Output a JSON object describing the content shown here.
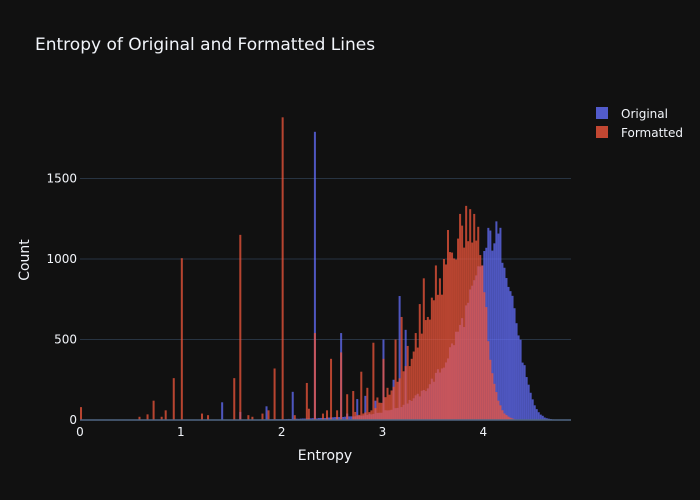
{
  "chart_data": {
    "type": "bar",
    "subtype": "overlaid-histogram",
    "title": "Entropy of Original and Formatted Lines",
    "xlabel": "Entropy",
    "ylabel": "Count",
    "xlim": [
      0,
      4.87
    ],
    "ylim": [
      0,
      2000
    ],
    "x_ticks": [
      0,
      1,
      2,
      3,
      4
    ],
    "y_ticks": [
      0,
      500,
      1000,
      1500
    ],
    "grid": true,
    "legend_position": "top-right",
    "bin_width": 0.02,
    "series": [
      {
        "name": "Original",
        "color": "#636efa",
        "smooth": {
          "points": [
            [
              1.6,
              2
            ],
            [
              2.0,
              5
            ],
            [
              2.4,
              12
            ],
            [
              2.8,
              28
            ],
            [
              3.0,
              50
            ],
            [
              3.2,
              90
            ],
            [
              3.4,
              170
            ],
            [
              3.6,
              330
            ],
            [
              3.8,
              620
            ],
            [
              3.9,
              800
            ],
            [
              4.0,
              1000
            ],
            [
              4.04,
              1090
            ],
            [
              4.08,
              1140
            ],
            [
              4.12,
              1150
            ],
            [
              4.16,
              1120
            ],
            [
              4.2,
              1050
            ],
            [
              4.26,
              880
            ],
            [
              4.32,
              650
            ],
            [
              4.38,
              420
            ],
            [
              4.44,
              220
            ],
            [
              4.5,
              100
            ],
            [
              4.56,
              38
            ],
            [
              4.62,
              12
            ],
            [
              4.7,
              2
            ]
          ]
        },
        "spikes": [
          [
            1.4,
            110
          ],
          [
            1.58,
            50
          ],
          [
            1.84,
            85
          ],
          [
            2.1,
            175
          ],
          [
            2.32,
            1790
          ],
          [
            2.58,
            540
          ],
          [
            2.64,
            40
          ],
          [
            2.74,
            130
          ],
          [
            2.81,
            150
          ],
          [
            2.92,
            120
          ],
          [
            3.0,
            500
          ],
          [
            3.1,
            250
          ],
          [
            3.16,
            770
          ],
          [
            3.22,
            560
          ]
        ]
      },
      {
        "name": "Formatted",
        "color": "#ef553b",
        "smooth": {
          "points": [
            [
              2.7,
              20
            ],
            [
              2.9,
              60
            ],
            [
              3.1,
              180
            ],
            [
              3.3,
              380
            ],
            [
              3.5,
              680
            ],
            [
              3.6,
              850
            ],
            [
              3.7,
              1010
            ],
            [
              3.76,
              1110
            ],
            [
              3.8,
              1180
            ],
            [
              3.84,
              1210
            ],
            [
              3.88,
              1240
            ],
            [
              3.9,
              1200
            ],
            [
              3.94,
              1100
            ],
            [
              3.98,
              920
            ],
            [
              4.02,
              700
            ],
            [
              4.06,
              460
            ],
            [
              4.1,
              260
            ],
            [
              4.14,
              130
            ],
            [
              4.2,
              50
            ],
            [
              4.26,
              15
            ],
            [
              4.32,
              3
            ]
          ]
        },
        "spikes": [
          [
            0.0,
            80
          ],
          [
            0.58,
            20
          ],
          [
            0.66,
            35
          ],
          [
            0.72,
            120
          ],
          [
            0.8,
            20
          ],
          [
            0.84,
            60
          ],
          [
            0.92,
            260
          ],
          [
            1.0,
            1005
          ],
          [
            1.2,
            40
          ],
          [
            1.26,
            30
          ],
          [
            1.52,
            260
          ],
          [
            1.58,
            1150
          ],
          [
            1.66,
            30
          ],
          [
            1.7,
            20
          ],
          [
            1.8,
            40
          ],
          [
            1.86,
            60
          ],
          [
            1.92,
            320
          ],
          [
            2.0,
            1880
          ],
          [
            2.12,
            30
          ],
          [
            2.24,
            230
          ],
          [
            2.26,
            70
          ],
          [
            2.32,
            540
          ],
          [
            2.4,
            40
          ],
          [
            2.44,
            60
          ],
          [
            2.48,
            380
          ],
          [
            2.54,
            60
          ],
          [
            2.58,
            420
          ],
          [
            2.64,
            160
          ],
          [
            2.7,
            180
          ],
          [
            2.72,
            50
          ],
          [
            2.78,
            300
          ],
          [
            2.84,
            200
          ],
          [
            2.9,
            480
          ],
          [
            2.94,
            140
          ],
          [
            3.0,
            380
          ],
          [
            3.04,
            200
          ],
          [
            3.1,
            160
          ],
          [
            3.12,
            500
          ],
          [
            3.18,
            640
          ],
          [
            3.24,
            460
          ],
          [
            3.28,
            380
          ],
          [
            3.32,
            540
          ],
          [
            3.36,
            720
          ],
          [
            3.4,
            880
          ],
          [
            3.44,
            640
          ],
          [
            3.48,
            760
          ],
          [
            3.52,
            960
          ],
          [
            3.56,
            880
          ],
          [
            3.6,
            1000
          ],
          [
            3.64,
            1180
          ],
          [
            3.68,
            1040
          ],
          [
            3.72,
            960
          ],
          [
            3.76,
            1280
          ],
          [
            3.78,
            1100
          ],
          [
            3.82,
            1330
          ],
          [
            3.86,
            1300
          ],
          [
            3.9,
            1280
          ],
          [
            3.94,
            1200
          ],
          [
            3.98,
            960
          ]
        ]
      }
    ]
  }
}
